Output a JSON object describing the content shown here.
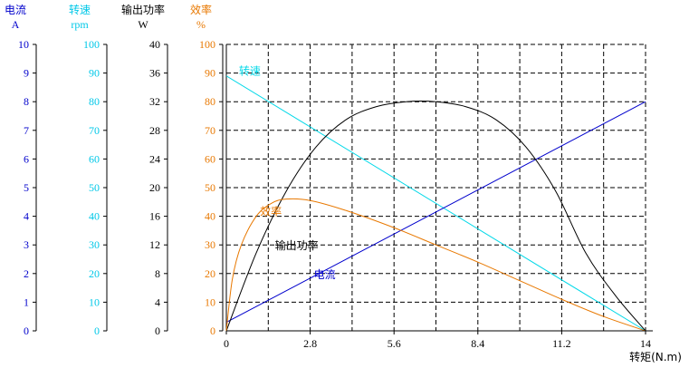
{
  "chart_data": {
    "type": "line",
    "x_axis": {
      "label": "转矩(N.m)",
      "min": 0,
      "max": 14,
      "ticks": [
        "0",
        "2.8",
        "5.6",
        "8.4",
        "11.2",
        "14"
      ]
    },
    "y_axes": [
      {
        "name": "电流",
        "unit": "A",
        "color": "#0000cc",
        "min": 0,
        "max": 10,
        "ticks": [
          "0",
          "1",
          "2",
          "3",
          "4",
          "5",
          "6",
          "7",
          "8",
          "9",
          "10"
        ]
      },
      {
        "name": "转速",
        "unit": "rpm",
        "color": "#00c8e8",
        "min": 0,
        "max": 100,
        "ticks": [
          "0",
          "10",
          "20",
          "30",
          "40",
          "50",
          "60",
          "70",
          "80",
          "90",
          "100"
        ]
      },
      {
        "name": "输出功率",
        "unit": "W",
        "color": "#000000",
        "min": 0,
        "max": 40,
        "ticks": [
          "0",
          "4",
          "8",
          "12",
          "16",
          "20",
          "24",
          "28",
          "32",
          "36",
          "40"
        ]
      },
      {
        "name": "效率",
        "unit": "%",
        "color": "#e87800",
        "min": 0,
        "max": 100,
        "ticks": [
          "0",
          "10",
          "20",
          "30",
          "40",
          "50",
          "60",
          "70",
          "80",
          "90",
          "100"
        ]
      }
    ],
    "series": [
      {
        "name": "转速",
        "color": "#00d8e8",
        "x": [
          0,
          14
        ],
        "y": [
          89,
          0
        ],
        "label_at": [
          0.3,
          91
        ]
      },
      {
        "name": "电流",
        "color": "#0000cc",
        "x": [
          0,
          14
        ],
        "y": [
          0.3,
          8
        ],
        "label_at": [
          2.8,
          2.0
        ]
      },
      {
        "name": "输出功率",
        "color": "#000000",
        "x": [
          0,
          1,
          2,
          3,
          4,
          5,
          6,
          7,
          8,
          9,
          10,
          11,
          12,
          13,
          14
        ],
        "y": [
          0,
          10.9,
          19.5,
          25.7,
          29.5,
          31.3,
          32.0,
          32.0,
          31.3,
          29.5,
          25.7,
          19.5,
          10.9,
          4.9,
          0
        ],
        "label_at": [
          1.5,
          12
        ]
      },
      {
        "name": "效率",
        "color": "#e87800",
        "x": [
          0,
          0.2,
          0.5,
          1.0,
          1.5,
          2.0,
          2.8,
          4.0,
          5.6,
          7.0,
          8.4,
          9.8,
          11.2,
          12.6,
          14
        ],
        "y": [
          0,
          18,
          30,
          40,
          44.5,
          46,
          45.5,
          42,
          36,
          30,
          24,
          17.5,
          11,
          5,
          0
        ],
        "label_at": [
          1.0,
          42
        ]
      }
    ],
    "grid": true,
    "legend": "none"
  }
}
